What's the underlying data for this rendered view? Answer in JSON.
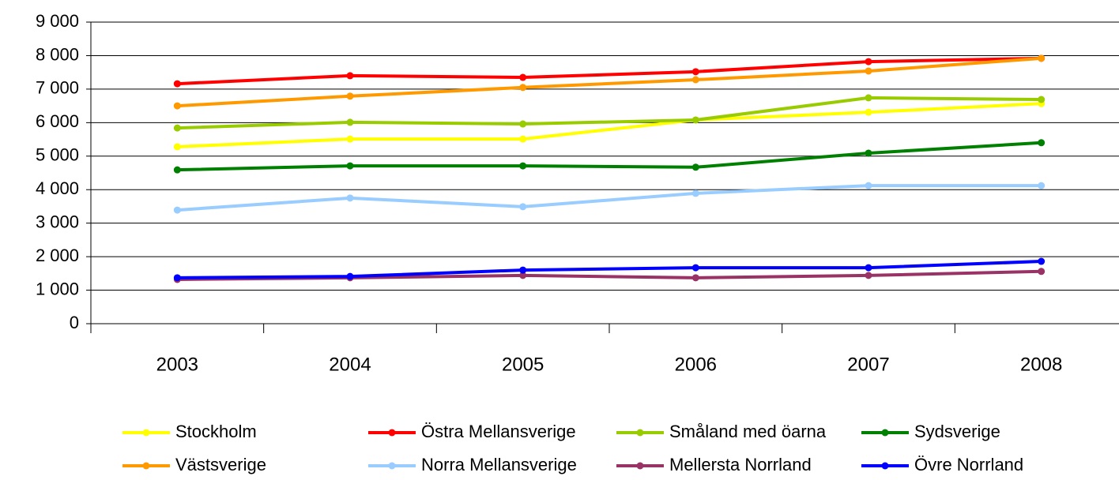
{
  "chart_data": {
    "type": "line",
    "categories": [
      "2003",
      "2004",
      "2005",
      "2006",
      "2007",
      "2008"
    ],
    "series": [
      {
        "name": "Stockholm",
        "color": "#ffff00",
        "values": [
          5280,
          5510,
          5510,
          6080,
          6310,
          6570
        ]
      },
      {
        "name": "Östra Mellansverige",
        "color": "#ff0000",
        "values": [
          7160,
          7400,
          7350,
          7520,
          7820,
          7920
        ]
      },
      {
        "name": "Småland med öarna",
        "color": "#99cc00",
        "values": [
          5840,
          6010,
          5960,
          6080,
          6740,
          6690
        ]
      },
      {
        "name": "Sydsverige",
        "color": "#008000",
        "values": [
          4590,
          4710,
          4710,
          4670,
          5090,
          5400
        ]
      },
      {
        "name": "Västsverige",
        "color": "#ff9900",
        "values": [
          6500,
          6790,
          7050,
          7280,
          7540,
          7920
        ]
      },
      {
        "name": "Norra Mellansverige",
        "color": "#99ccff",
        "values": [
          3390,
          3750,
          3490,
          3890,
          4120,
          4120
        ]
      },
      {
        "name": "Mellersta Norrland",
        "color": "#993366",
        "values": [
          1320,
          1370,
          1440,
          1370,
          1440,
          1560
        ]
      },
      {
        "name": "Övre Norrland",
        "color": "#0000ff",
        "values": [
          1370,
          1410,
          1600,
          1670,
          1670,
          1860
        ]
      }
    ],
    "ylim": [
      0,
      9000
    ],
    "yticks": [
      0,
      {
        "value": 1000,
        "label": "1 000"
      },
      {
        "value": 2000,
        "label": "2 000"
      },
      {
        "value": 3000,
        "label": "3 000"
      },
      {
        "value": 4000,
        "label": "4 000"
      },
      {
        "value": 5000,
        "label": "5 000"
      },
      {
        "value": 6000,
        "label": "6 000"
      },
      {
        "value": 7000,
        "label": "7 000"
      },
      {
        "value": 8000,
        "label": "8 000"
      },
      {
        "value": 9000,
        "label": "9 000"
      }
    ],
    "grid": true,
    "legend": "bottom"
  }
}
